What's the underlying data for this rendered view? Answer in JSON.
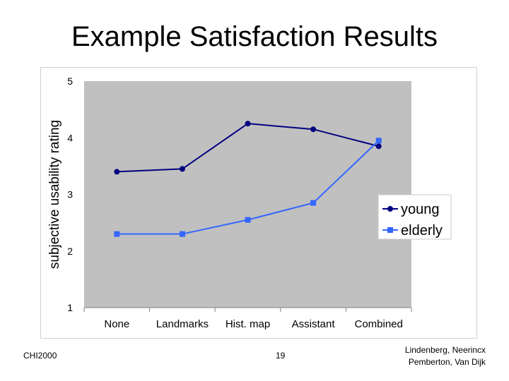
{
  "slide": {
    "title": "Example Satisfaction Results",
    "footer_left": "CHI2000",
    "page_number": "19",
    "authors_line1": "Lindenberg, Neerincx",
    "authors_line2": "Pemberton, Van Dijk"
  },
  "colors": {
    "plot_background": "#c0c0c0",
    "young": "#000080",
    "elderly": "#3366ff"
  },
  "chart_data": {
    "type": "line",
    "title": "",
    "xlabel": "",
    "ylabel": "subjective usability rating",
    "categories": [
      "None",
      "Landmarks",
      "Hist. map",
      "Assistant",
      "Combined"
    ],
    "ylim": [
      1,
      5
    ],
    "yticks": [
      1,
      2,
      3,
      4,
      5
    ],
    "grid": false,
    "legend_position": "right",
    "series": [
      {
        "name": "young",
        "values": [
          3.4,
          3.45,
          4.25,
          4.15,
          3.85
        ],
        "marker": "circle",
        "color": "#000080"
      },
      {
        "name": "elderly",
        "values": [
          2.3,
          2.3,
          2.55,
          2.85,
          3.95
        ],
        "marker": "square",
        "color": "#3366ff"
      }
    ]
  }
}
